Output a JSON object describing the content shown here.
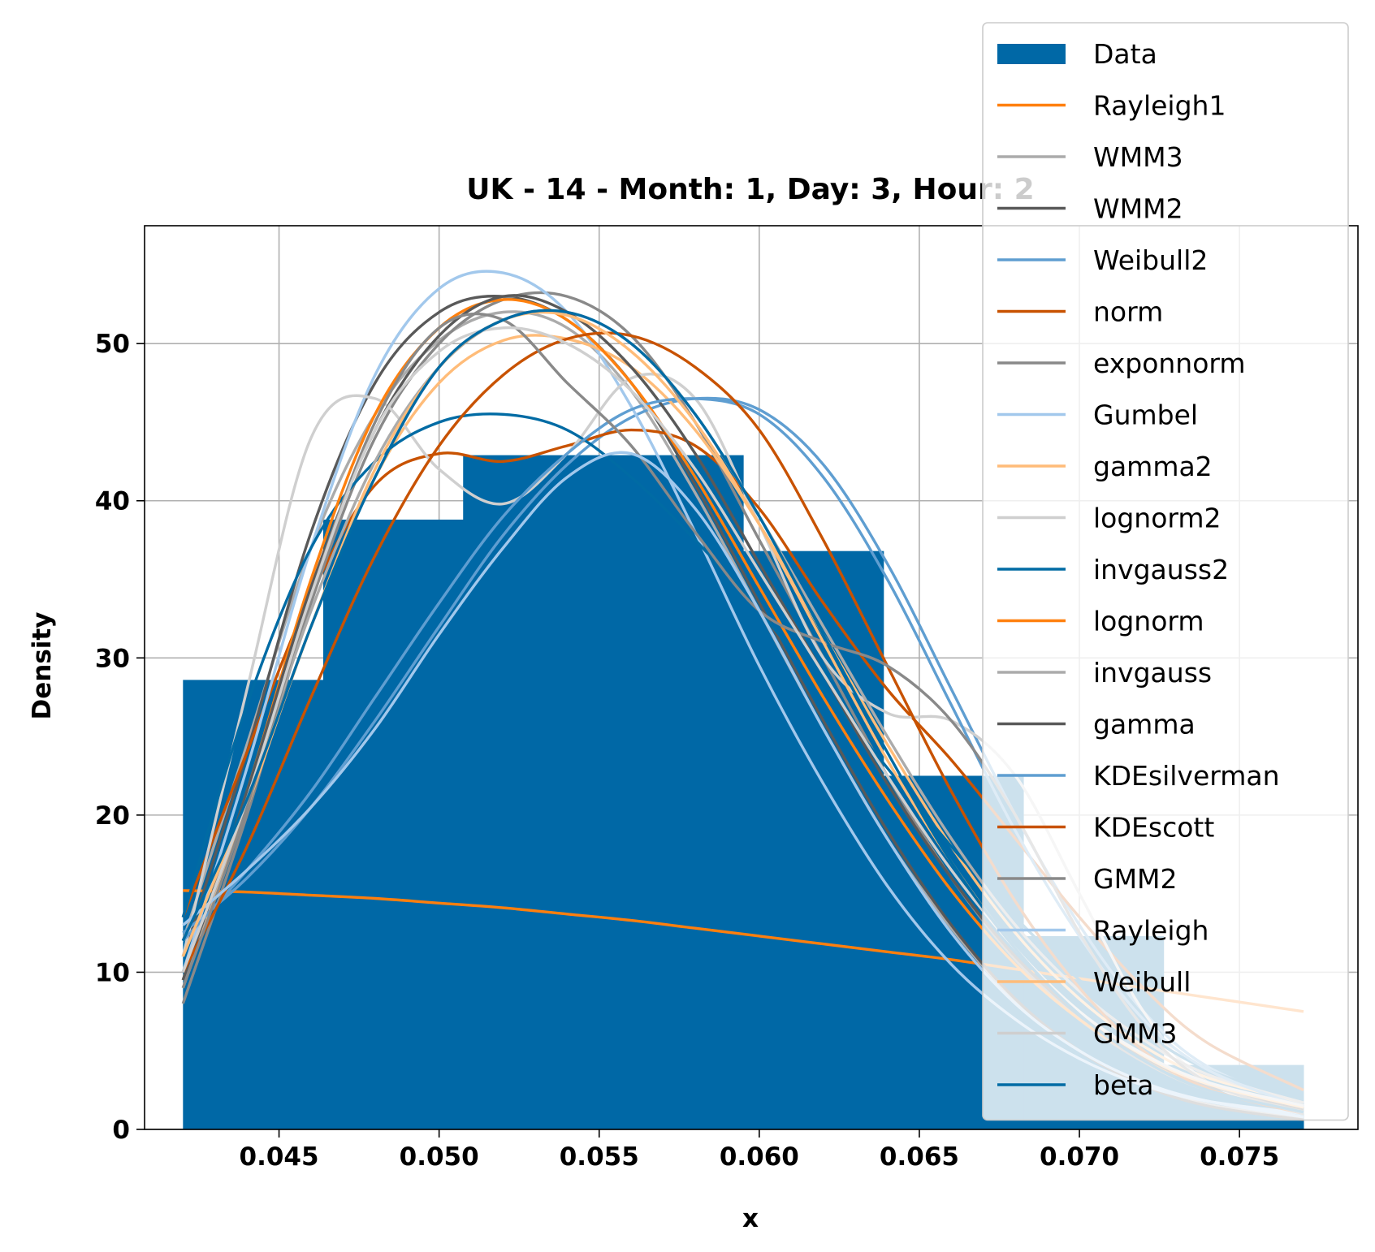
{
  "chart_data": {
    "type": "histogram with fitted density curves",
    "title": "UK - 14 - Month: 1, Day: 3, Hour: 2",
    "xlabel": "x",
    "ylabel": "Density",
    "xlim": [
      0.0408,
      0.0787
    ],
    "ylim": [
      0,
      57.5
    ],
    "grid": true,
    "legend_position": "top-right",
    "x_ticks": [
      0.045,
      0.05,
      0.055,
      0.06,
      0.065,
      0.07,
      0.075
    ],
    "x_tick_labels": [
      "0.045",
      "0.050",
      "0.055",
      "0.060",
      "0.065",
      "0.070",
      "0.075"
    ],
    "y_ticks": [
      0,
      10,
      20,
      30,
      40,
      50
    ],
    "y_tick_labels": [
      "0",
      "10",
      "20",
      "30",
      "40",
      "50"
    ],
    "histogram": {
      "name": "Data",
      "color": "#0068a6",
      "bin_edges": [
        0.042,
        0.04638,
        0.05075,
        0.05513,
        0.0595,
        0.06388,
        0.06825,
        0.07263,
        0.077
      ],
      "counts": [
        28.6,
        38.8,
        42.9,
        42.9,
        36.8,
        22.5,
        12.3,
        4.1
      ]
    },
    "x": [
      0.042,
      0.044,
      0.046,
      0.048,
      0.05,
      0.052,
      0.054,
      0.056,
      0.058,
      0.06,
      0.062,
      0.064,
      0.066,
      0.068,
      0.07,
      0.072,
      0.074,
      0.077
    ],
    "series": [
      {
        "name": "Rayleigh1",
        "color": "#ff7f0e",
        "values": [
          15.2,
          15.1,
          14.9,
          14.7,
          14.4,
          14.1,
          13.7,
          13.3,
          12.8,
          12.3,
          11.8,
          11.3,
          10.8,
          10.2,
          9.6,
          9.0,
          8.4,
          7.5
        ]
      },
      {
        "name": "WMM3",
        "color": "#ababab",
        "values": [
          12.0,
          24.5,
          37.0,
          45.5,
          50.2,
          52.0,
          51.0,
          47.0,
          40.5,
          33.0,
          25.5,
          18.5,
          12.8,
          8.2,
          5.0,
          2.9,
          1.6,
          0.7
        ]
      },
      {
        "name": "WMM2",
        "color": "#595959",
        "values": [
          11.0,
          24.0,
          38.0,
          47.5,
          52.0,
          53.0,
          51.5,
          47.5,
          41.0,
          33.5,
          26.0,
          19.0,
          13.0,
          8.3,
          5.0,
          2.8,
          1.5,
          0.6
        ]
      },
      {
        "name": "Weibull2",
        "color": "#5f9ed1",
        "values": [
          12.5,
          16.0,
          20.5,
          26.0,
          32.0,
          37.8,
          42.3,
          45.3,
          46.5,
          45.8,
          42.3,
          36.0,
          28.0,
          20.0,
          13.0,
          7.5,
          4.0,
          1.5
        ]
      },
      {
        "name": "norm",
        "color": "#c85200",
        "values": [
          13.5,
          24.0,
          34.0,
          41.0,
          43.0,
          42.5,
          43.5,
          44.5,
          43.5,
          39.5,
          33.5,
          28.0,
          23.5,
          18.5,
          13.5,
          9.0,
          5.5,
          2.5
        ]
      },
      {
        "name": "exponnorm",
        "color": "#898989",
        "values": [
          8.0,
          20.0,
          33.5,
          44.0,
          50.0,
          52.8,
          53.0,
          50.5,
          45.0,
          37.5,
          30.0,
          22.5,
          16.0,
          10.8,
          7.0,
          4.3,
          2.5,
          1.2
        ]
      },
      {
        "name": "Gumbel",
        "color": "#a2c8ec",
        "values": [
          10.0,
          23.0,
          37.0,
          48.0,
          53.5,
          54.5,
          52.0,
          46.0,
          38.0,
          29.5,
          22.0,
          15.5,
          10.5,
          7.0,
          4.5,
          2.8,
          1.8,
          1.0
        ]
      },
      {
        "name": "gamma2",
        "color": "#ffbc79",
        "values": [
          9.0,
          20.5,
          32.0,
          41.5,
          47.5,
          50.2,
          50.3,
          48.5,
          44.5,
          38.5,
          31.5,
          24.5,
          18.0,
          12.5,
          8.3,
          5.3,
          3.3,
          1.7
        ]
      },
      {
        "name": "lognorm2",
        "color": "#cfcfcf",
        "values": [
          11.0,
          28.0,
          44.0,
          46.5,
          42.0,
          39.8,
          43.0,
          47.8,
          46.5,
          38.5,
          30.0,
          26.5,
          26.0,
          22.5,
          15.0,
          7.5,
          3.0,
          1.0
        ]
      },
      {
        "name": "invgauss2",
        "color": "#006ba4",
        "values": [
          13.5,
          27.0,
          37.0,
          42.5,
          45.0,
          45.5,
          44.5,
          41.5,
          37.5,
          33.0,
          28.0,
          23.0,
          18.0,
          13.5,
          9.5,
          6.2,
          3.8,
          1.8
        ]
      },
      {
        "name": "lognorm",
        "color": "#ff800e",
        "values": [
          9.5,
          21.5,
          35.0,
          45.5,
          51.0,
          52.8,
          51.5,
          47.5,
          41.5,
          34.5,
          27.5,
          21.0,
          15.2,
          10.5,
          7.0,
          4.5,
          2.8,
          1.3
        ]
      },
      {
        "name": "invgauss",
        "color": "#ababab",
        "values": [
          9.5,
          21.0,
          33.0,
          42.5,
          48.5,
          51.5,
          52.0,
          50.0,
          45.5,
          39.0,
          32.0,
          25.0,
          18.5,
          13.0,
          8.8,
          5.7,
          3.5,
          1.7
        ]
      },
      {
        "name": "gamma",
        "color": "#595959",
        "values": [
          9.5,
          21.5,
          34.5,
          44.5,
          50.5,
          53.0,
          52.0,
          48.5,
          43.0,
          36.0,
          29.0,
          22.0,
          16.0,
          11.0,
          7.3,
          4.6,
          2.8,
          1.3
        ]
      },
      {
        "name": "KDEsilverman",
        "color": "#5f9ed1",
        "values": [
          12.0,
          16.5,
          21.5,
          27.5,
          33.5,
          39.0,
          43.0,
          45.8,
          46.5,
          45.5,
          41.5,
          35.0,
          27.0,
          19.0,
          12.3,
          7.0,
          3.8,
          1.4
        ]
      },
      {
        "name": "KDEscott",
        "color": "#c85200",
        "values": [
          10.0,
          18.0,
          27.5,
          36.5,
          43.5,
          48.0,
          50.3,
          50.5,
          48.5,
          44.5,
          37.5,
          29.5,
          21.5,
          14.5,
          9.0,
          5.0,
          2.6,
          1.0
        ]
      },
      {
        "name": "GMM2",
        "color": "#898989",
        "values": [
          9.0,
          20.5,
          34.0,
          45.0,
          51.0,
          51.5,
          47.5,
          43.5,
          38.0,
          33.0,
          31.0,
          29.5,
          26.0,
          20.0,
          12.5,
          6.5,
          3.0,
          1.0
        ]
      },
      {
        "name": "Rayleigh",
        "color": "#a2c8ec",
        "values": [
          13.0,
          16.5,
          20.5,
          25.5,
          31.5,
          37.0,
          41.5,
          43.0,
          39.5,
          33.0,
          25.5,
          18.5,
          12.5,
          8.0,
          5.0,
          3.0,
          1.8,
          0.8
        ]
      },
      {
        "name": "Weibull",
        "color": "#ffbc79",
        "values": [
          11.0,
          21.0,
          32.0,
          42.0,
          48.5,
          51.5,
          51.8,
          49.5,
          45.0,
          38.5,
          31.0,
          23.5,
          17.0,
          11.5,
          7.5,
          4.7,
          2.9,
          1.4
        ]
      },
      {
        "name": "GMM3",
        "color": "#cfcfcf",
        "values": [
          10.0,
          21.0,
          34.0,
          44.5,
          49.5,
          51.0,
          50.0,
          47.0,
          42.0,
          35.5,
          29.0,
          22.5,
          16.5,
          11.5,
          7.5,
          4.8,
          3.0,
          1.5
        ]
      },
      {
        "name": "beta",
        "color": "#006ba4",
        "values": [
          12.0,
          21.0,
          32.0,
          41.5,
          48.5,
          51.5,
          52.0,
          50.0,
          45.5,
          39.0,
          31.5,
          24.0,
          17.0,
          11.5,
          7.3,
          4.4,
          2.5,
          1.1
        ]
      }
    ]
  }
}
